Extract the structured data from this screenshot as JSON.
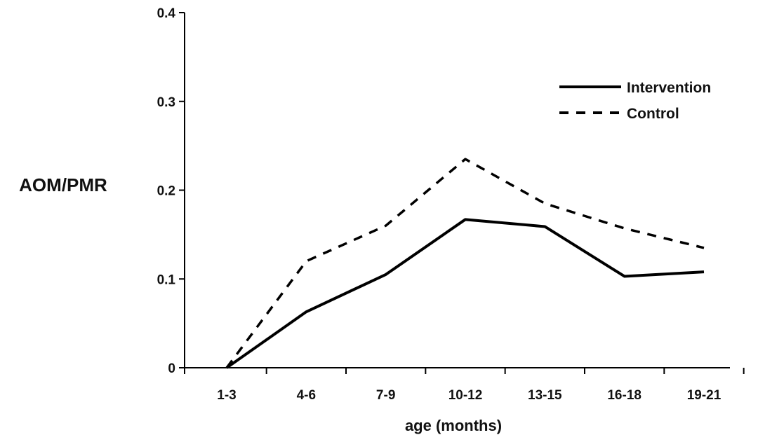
{
  "chart_data": {
    "type": "line",
    "title": "",
    "xlabel": "age (months)",
    "ylabel": "AOM/PMR",
    "categories": [
      "1-3",
      "4-6",
      "7-9",
      "10-12",
      "13-15",
      "16-18",
      "19-21"
    ],
    "ylim": [
      0,
      0.4
    ],
    "yticks": [
      "0",
      "0.1",
      "0.2",
      "0.3",
      "0.4"
    ],
    "grid": false,
    "legend_position": "top-right",
    "series": [
      {
        "name": "Intervention",
        "style": "solid",
        "color": "#000000",
        "values": [
          0,
          0.063,
          0.105,
          0.167,
          0.159,
          0.103,
          0.108
        ]
      },
      {
        "name": "Control",
        "style": "dashed",
        "color": "#000000",
        "values": [
          0,
          0.12,
          0.16,
          0.235,
          0.185,
          0.157,
          0.135
        ]
      }
    ]
  }
}
